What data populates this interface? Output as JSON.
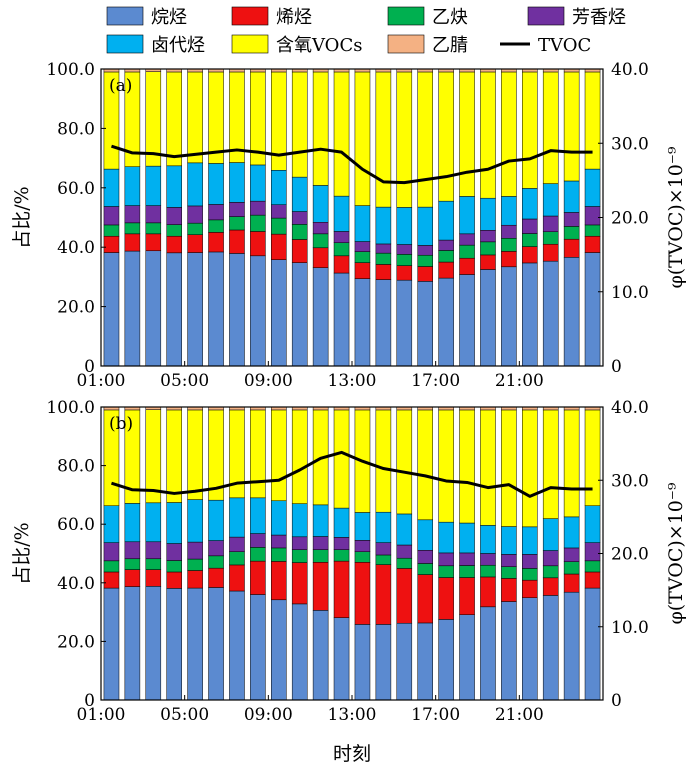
{
  "chart_data": [
    {
      "panel_label": "(a)",
      "type": "bar",
      "stacked": true,
      "categories": [
        "01:00",
        "02:00",
        "03:00",
        "04:00",
        "05:00",
        "06:00",
        "07:00",
        "08:00",
        "09:00",
        "10:00",
        "11:00",
        "12:00",
        "13:00",
        "14:00",
        "15:00",
        "16:00",
        "17:00",
        "18:00",
        "19:00",
        "20:00",
        "21:00",
        "22:00",
        "23:00",
        "24:00"
      ],
      "series": [
        {
          "name": "烷烃",
          "color": "#5b8ad0",
          "values": [
            38.2,
            38.7,
            38.8,
            38.1,
            38.2,
            38.4,
            37.9,
            37.1,
            35.8,
            34.8,
            33.1,
            31.3,
            29.4,
            29.1,
            28.9,
            28.5,
            29.6,
            30.8,
            32.5,
            33.4,
            34.7,
            35.3,
            36.6,
            38.2
          ]
        },
        {
          "name": "烯烃",
          "color": "#ee1111",
          "values": [
            5.5,
            5.8,
            5.7,
            5.6,
            6.0,
            6.6,
            7.9,
            8.2,
            8.6,
            7.8,
            6.7,
            5.8,
            5.4,
            5.1,
            4.9,
            5.0,
            5.4,
            5.5,
            4.9,
            5.2,
            5.5,
            5.7,
            6.1,
            5.5
          ]
        },
        {
          "name": "乙炔",
          "color": "#00b050",
          "values": [
            3.8,
            3.7,
            3.7,
            3.9,
            3.9,
            4.2,
            4.5,
            5.5,
            5.4,
            5.1,
            4.7,
            4.4,
            3.7,
            3.8,
            3.8,
            3.8,
            3.9,
            4.4,
            4.4,
            4.4,
            4.4,
            4.2,
            4.3,
            3.8
          ]
        },
        {
          "name": "芳香烃",
          "color": "#7030a0",
          "values": [
            6.2,
            5.8,
            5.8,
            5.8,
            5.8,
            5.2,
            4.8,
            4.7,
            4.5,
            4.3,
            3.9,
            3.8,
            3.4,
            3.1,
            3.3,
            3.3,
            3.5,
            3.8,
            3.9,
            4.4,
            4.9,
            5.3,
            4.7,
            6.2
          ]
        },
        {
          "name": "卤代烃",
          "color": "#00b0f0",
          "values": [
            12.6,
            13.1,
            13.3,
            14.0,
            14.5,
            13.8,
            13.4,
            12.2,
            11.6,
            11.6,
            12.4,
            11.9,
            12.1,
            12.4,
            12.5,
            12.9,
            13.1,
            12.6,
            10.8,
            9.7,
            10.3,
            10.9,
            10.6,
            12.6
          ]
        },
        {
          "name": "含氧VOCs",
          "color": "#ffff00",
          "values": [
            32.7,
            31.9,
            31.8,
            31.6,
            30.6,
            30.8,
            30.5,
            31.3,
            33.1,
            35.4,
            38.2,
            41.8,
            45.0,
            45.5,
            45.6,
            45.5,
            43.5,
            41.9,
            42.5,
            41.9,
            39.2,
            37.6,
            36.7,
            32.7
          ]
        },
        {
          "name": "乙腈",
          "color": "#f4b183",
          "values": [
            1.0,
            1.0,
            0.9,
            1.0,
            1.0,
            1.0,
            1.0,
            1.0,
            1.0,
            1.0,
            1.0,
            1.0,
            1.0,
            1.0,
            1.0,
            1.0,
            1.0,
            1.0,
            1.0,
            1.0,
            1.0,
            1.0,
            1.0,
            1.0
          ]
        }
      ],
      "line": {
        "name": "TVOC",
        "color": "#000000",
        "values": [
          29.6,
          28.7,
          28.6,
          28.2,
          28.5,
          28.8,
          29.1,
          28.8,
          28.4,
          28.8,
          29.2,
          28.8,
          26.5,
          24.8,
          24.7,
          25.1,
          25.5,
          26.1,
          26.5,
          27.6,
          27.9,
          29.0,
          28.8,
          28.8
        ]
      },
      "ylim": [
        0,
        100
      ],
      "y2lim": [
        0,
        40
      ],
      "yticks": [
        "0",
        "20.0",
        "40.0",
        "60.0",
        "80.0",
        "100.0"
      ],
      "y2ticks": [
        "0",
        "10.0",
        "20.0",
        "30.0",
        "40.0"
      ],
      "xticks": [
        "01:00",
        "05:00",
        "09:00",
        "13:00",
        "17:00",
        "21:00"
      ],
      "ylabel": "占比/%",
      "y2label": "φ(TVOC)×10⁻⁹"
    },
    {
      "panel_label": "(b)",
      "type": "bar",
      "stacked": true,
      "categories": [
        "01:00",
        "02:00",
        "03:00",
        "04:00",
        "05:00",
        "06:00",
        "07:00",
        "08:00",
        "09:00",
        "10:00",
        "11:00",
        "12:00",
        "13:00",
        "14:00",
        "15:00",
        "16:00",
        "17:00",
        "18:00",
        "19:00",
        "20:00",
        "21:00",
        "22:00",
        "23:00",
        "24:00"
      ],
      "series": [
        {
          "name": "烷烃",
          "color": "#5b8ad0",
          "values": [
            38.2,
            38.7,
            38.8,
            38.1,
            38.2,
            38.4,
            37.2,
            36.0,
            34.2,
            32.8,
            30.6,
            28.1,
            25.8,
            25.8,
            26.2,
            26.3,
            27.5,
            29.1,
            31.8,
            33.6,
            34.9,
            35.7,
            36.8,
            38.2
          ]
        },
        {
          "name": "烯烃",
          "color": "#ee1111",
          "values": [
            5.5,
            5.8,
            5.7,
            5.6,
            6.0,
            6.6,
            8.9,
            11.4,
            13.1,
            14.1,
            16.4,
            19.3,
            21.2,
            20.4,
            18.7,
            16.5,
            14.3,
            12.7,
            10.2,
            7.9,
            6.0,
            6.0,
            6.2,
            5.5
          ]
        },
        {
          "name": "乙炔",
          "color": "#00b050",
          "values": [
            3.8,
            3.7,
            3.7,
            3.9,
            3.9,
            4.2,
            4.5,
            4.7,
            4.6,
            4.4,
            4.3,
            3.9,
            3.6,
            3.3,
            3.5,
            3.8,
            4.0,
            4.1,
            4.0,
            4.0,
            4.0,
            4.1,
            4.2,
            3.8
          ]
        },
        {
          "name": "芳香烃",
          "color": "#7030a0",
          "values": [
            6.2,
            5.8,
            5.8,
            5.8,
            5.8,
            5.2,
            5.0,
            4.7,
            4.4,
            4.4,
            4.5,
            4.2,
            3.9,
            4.2,
            4.5,
            4.5,
            4.4,
            4.3,
            4.0,
            4.2,
            4.8,
            5.2,
            4.7,
            6.2
          ]
        },
        {
          "name": "卤代烃",
          "color": "#00b0f0",
          "values": [
            12.6,
            13.1,
            13.3,
            14.0,
            14.5,
            13.8,
            13.4,
            12.2,
            11.7,
            11.3,
            10.8,
            10.0,
            9.5,
            10.4,
            10.6,
            10.4,
            10.5,
            10.2,
            9.6,
            9.5,
            9.4,
            10.9,
            10.6,
            12.6
          ]
        },
        {
          "name": "含氧VOCs",
          "color": "#ffff00",
          "values": [
            32.7,
            31.9,
            31.8,
            31.6,
            30.6,
            30.8,
            30.0,
            30.0,
            31.0,
            32.0,
            32.4,
            33.5,
            35.0,
            34.9,
            35.5,
            37.5,
            38.3,
            38.6,
            39.4,
            39.8,
            39.9,
            37.1,
            36.5,
            32.7
          ]
        },
        {
          "name": "乙腈",
          "color": "#f4b183",
          "values": [
            1.0,
            1.0,
            0.9,
            1.0,
            1.0,
            1.0,
            1.0,
            1.0,
            1.0,
            1.0,
            1.0,
            1.0,
            1.0,
            1.0,
            1.0,
            1.0,
            1.0,
            1.0,
            1.0,
            1.0,
            1.0,
            1.0,
            1.0,
            1.0
          ]
        }
      ],
      "line": {
        "name": "TVOC",
        "color": "#000000",
        "values": [
          29.6,
          28.7,
          28.6,
          28.2,
          28.5,
          28.9,
          29.6,
          29.8,
          30.0,
          31.4,
          33.0,
          33.8,
          32.6,
          31.6,
          31.1,
          30.6,
          29.9,
          29.7,
          29.0,
          29.4,
          27.8,
          29.0,
          28.8,
          28.8
        ]
      },
      "ylim": [
        0,
        100
      ],
      "y2lim": [
        0,
        40
      ],
      "yticks": [
        "0",
        "20.0",
        "40.0",
        "60.0",
        "80.0",
        "100.0"
      ],
      "y2ticks": [
        "0",
        "10.0",
        "20.0",
        "30.0",
        "40.0"
      ],
      "xticks": [
        "01:00",
        "05:00",
        "09:00",
        "13:00",
        "17:00",
        "21:00"
      ],
      "ylabel": "占比/%",
      "y2label": "φ(TVOC)×10⁻⁹"
    }
  ],
  "legend": [
    {
      "label": "烷烃",
      "color": "#5b8ad0",
      "kind": "box"
    },
    {
      "label": "烯烃",
      "color": "#ee1111",
      "kind": "box"
    },
    {
      "label": "乙炔",
      "color": "#00b050",
      "kind": "box"
    },
    {
      "label": "芳香烃",
      "color": "#7030a0",
      "kind": "box"
    },
    {
      "label": "卤代烃",
      "color": "#00b0f0",
      "kind": "box"
    },
    {
      "label": "含氧VOCs",
      "color": "#ffff00",
      "kind": "box"
    },
    {
      "label": "乙腈",
      "color": "#f4b183",
      "kind": "box"
    },
    {
      "label": "TVOC",
      "color": "#000000",
      "kind": "line"
    }
  ],
  "xlabel": "时刻"
}
